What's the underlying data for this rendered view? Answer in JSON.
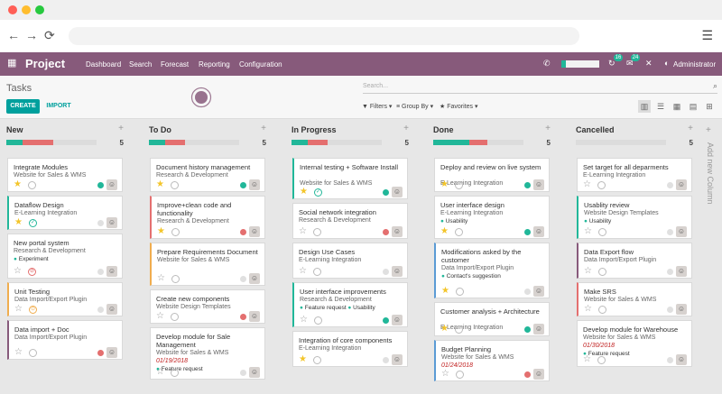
{
  "window": {
    "dot_colors": [
      "#ff5f56",
      "#ffbd2e",
      "#27c93f"
    ]
  },
  "navbar": {
    "brand": "Project",
    "menus": [
      "Dashboard",
      "Search",
      "Forecast",
      "Reporting",
      "Configuration"
    ],
    "notif_counts": [
      "16",
      "24"
    ],
    "user": "Administrator",
    "accent": "#875a7b"
  },
  "control": {
    "title": "Tasks",
    "create": "CREATE",
    "import": "IMPORT",
    "search_placeholder": "Search...",
    "filters": "Filters",
    "group_by": "Group By",
    "favorites": "Favorites",
    "views": [
      "kanban-icon",
      "list-icon",
      "grid-icon",
      "calendar-icon",
      "pivot-icon"
    ]
  },
  "board": {
    "add_column": "Add new Column",
    "columns": [
      {
        "name": "New",
        "count": "5",
        "bar": [
          {
            "c": "#21b799",
            "w": 0.18
          },
          {
            "c": "#e46f6f",
            "w": 0.34
          }
        ],
        "cards": [
          {
            "title": "Integrate Modules",
            "sub": "Website for Sales & WMS",
            "star": true,
            "state": "#21b799",
            "border": ""
          },
          {
            "title": "Dataflow Design",
            "sub": "E-Learning Integration",
            "star": true,
            "state": "",
            "border": "#21b799",
            "prio": "✓"
          },
          {
            "title": "New portal system",
            "sub": "Research & Development",
            "tag": "Experiment",
            "star": false,
            "state": "",
            "border": "",
            "prio": "⊘"
          },
          {
            "title": "Unit Testing",
            "sub": "Data Import/Export Plugin",
            "star": false,
            "state": "",
            "border": "#f0ad4e",
            "prio": "⊙"
          },
          {
            "title": "Data import + Doc",
            "sub": "Data Import/Export Plugin",
            "star": false,
            "state": "#e46f6f",
            "border": "#875a7b"
          }
        ]
      },
      {
        "name": "To Do",
        "count": "5",
        "bar": [
          {
            "c": "#21b799",
            "w": 0.18
          },
          {
            "c": "#e46f6f",
            "w": 0.22
          }
        ],
        "cards": [
          {
            "title": "Document history management",
            "sub": "Research & Development",
            "star": true,
            "state": "#21b799",
            "border": ""
          },
          {
            "title": "Improve+clean code and functionality",
            "sub": "Research & Development",
            "star": true,
            "state": "#e46f6f",
            "border": "#e46f6f"
          },
          {
            "title": "Prepare Requirements Document",
            "sub": "Website for Sales & WMS",
            "star": false,
            "state": "",
            "border": "#f0ad4e"
          },
          {
            "title": "Create new components",
            "sub": "Website Design Templates",
            "star": false,
            "state": "#e46f6f",
            "border": ""
          },
          {
            "title": "Develop module for Sale Management",
            "sub": "Website for Sales & WMS",
            "date": "01/19/2018",
            "tag": "Feature request",
            "star": false,
            "state": "",
            "border": ""
          }
        ]
      },
      {
        "name": "In Progress",
        "count": "5",
        "bar": [
          {
            "c": "#21b799",
            "w": 0.18
          },
          {
            "c": "#e46f6f",
            "w": 0.22
          }
        ],
        "cards": [
          {
            "title": "Internal testing + Software Install",
            "sub": "Website for Sales & WMS",
            "star": true,
            "state": "#21b799",
            "border": "#21b799",
            "prio": "✓"
          },
          {
            "title": "Social network integration",
            "sub": "Research & Development",
            "star": false,
            "state": "#e46f6f",
            "border": ""
          },
          {
            "title": "Design Use Cases",
            "sub": "E-Learning Integration",
            "star": false,
            "state": "",
            "border": ""
          },
          {
            "title": "User interface improvements",
            "sub": "Research & Development",
            "tag": "Feature request",
            "tag2": "Usability",
            "star": false,
            "state": "#21b799",
            "border": "#21b799"
          },
          {
            "title": "Integration of core components",
            "sub": "E-Learning Integration",
            "star": true,
            "state": "",
            "border": ""
          }
        ]
      },
      {
        "name": "Done",
        "count": "5",
        "bar": [
          {
            "c": "#21b799",
            "w": 0.4
          },
          {
            "c": "#e46f6f",
            "w": 0.2
          }
        ],
        "cards": [
          {
            "title": "Deploy and review on live system",
            "sub": "E-Learning Integration",
            "star": true,
            "state": "#21b799",
            "border": ""
          },
          {
            "title": "User interface design",
            "sub": "E-Learning Integration",
            "tag": "Usability",
            "star": true,
            "state": "#21b799",
            "border": ""
          },
          {
            "title": "Modifications asked by the customer",
            "sub": "Data Import/Export Plugin",
            "tag": "Contact's suggestion",
            "star": true,
            "state": "",
            "border": "#5b9bd5"
          },
          {
            "title": "Customer analysis + Architecture",
            "sub": "E-Learning Integration",
            "star": true,
            "state": "#21b799",
            "border": ""
          },
          {
            "title": "Budget Planning",
            "sub": "Website for Sales & WMS",
            "date": "01/24/2018",
            "star": false,
            "state": "#e46f6f",
            "border": "#5b9bd5"
          }
        ]
      },
      {
        "name": "Cancelled",
        "count": "5",
        "bar": [],
        "cards": [
          {
            "title": "Set target for all deparments",
            "sub": "E-Learning Integration",
            "star": false,
            "state": "",
            "border": ""
          },
          {
            "title": "Usablity review",
            "sub": "Website Design Templates",
            "tag": "Usability",
            "star": false,
            "state": "",
            "border": "#21b799"
          },
          {
            "title": "Data Export flow",
            "sub": "Data Import/Export Plugin",
            "star": false,
            "state": "",
            "border": "#875a7b"
          },
          {
            "title": "Make SRS",
            "sub": "Website for Sales & WMS",
            "star": false,
            "state": "",
            "border": "#e46f6f"
          },
          {
            "title": "Develop module for Warehouse",
            "sub": "Website for Sales & WMS",
            "date": "01/30/2018",
            "tag": "Feature request",
            "star": false,
            "state": "",
            "border": ""
          }
        ]
      }
    ]
  }
}
